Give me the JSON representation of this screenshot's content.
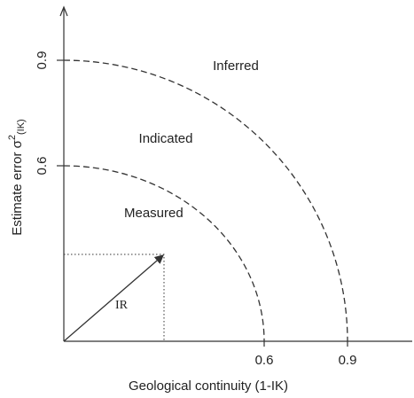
{
  "x_axis": {
    "label": "Geological continuity (1-IK)",
    "ticks": [
      "0.6",
      "0.9"
    ]
  },
  "y_axis": {
    "label": {
      "main": "Estimate error σ",
      "sup": "2",
      "sub": "(IK)"
    },
    "ticks": [
      "0.6",
      "0.9"
    ]
  },
  "regions": [
    "Measured",
    "Indicated",
    "Inferred"
  ],
  "vector": {
    "label": "IR"
  }
}
